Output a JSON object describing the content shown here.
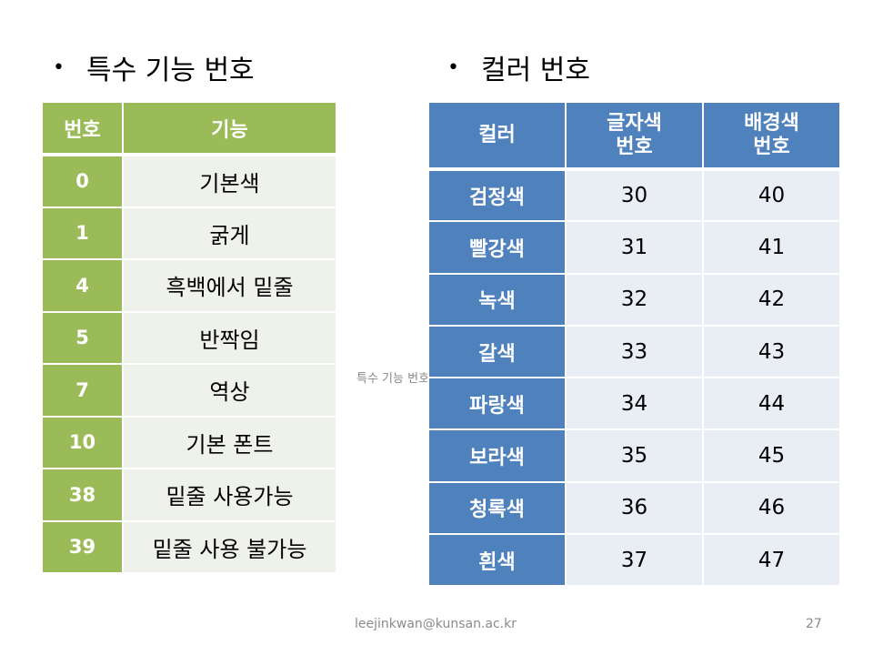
{
  "left": {
    "title": "특수 기능 번호",
    "headers": [
      "번호",
      "기능"
    ],
    "rows": [
      [
        "0",
        "기본색"
      ],
      [
        "1",
        "굵게"
      ],
      [
        "4",
        "흑백에서 밑줄"
      ],
      [
        "5",
        "반짝임"
      ],
      [
        "7",
        "역상"
      ],
      [
        "10",
        "기본 폰트"
      ],
      [
        "38",
        "밑줄 사용가능"
      ],
      [
        "39",
        "밑줄 사용 불가능"
      ]
    ]
  },
  "right": {
    "title": "컬러 번호",
    "headers": [
      "컬러",
      "글자색\n번호",
      "배경색\n번호"
    ],
    "rows": [
      [
        "검정색",
        "30",
        "40"
      ],
      [
        "빨강색",
        "31",
        "41"
      ],
      [
        "녹색",
        "32",
        "42"
      ],
      [
        "갈색",
        "33",
        "43"
      ],
      [
        "파랑색",
        "34",
        "44"
      ],
      [
        "보라색",
        "35",
        "45"
      ],
      [
        "청록색",
        "36",
        "46"
      ],
      [
        "흰색",
        "37",
        "47"
      ]
    ]
  },
  "overlay_text": "특수 기능 번호",
  "footer": {
    "email": "leejinkwan@kunsan.ac.kr",
    "page": "27"
  }
}
